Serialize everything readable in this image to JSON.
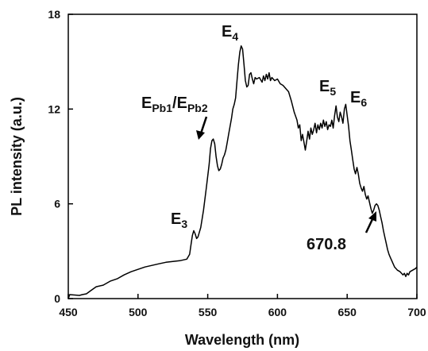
{
  "chart_data": {
    "type": "line",
    "title": "",
    "xlabel": "Wavelength (nm)",
    "ylabel": "PL intensity (a.u.)",
    "xlim": [
      450,
      700
    ],
    "ylim": [
      0,
      18
    ],
    "grid": false,
    "x_ticks": [
      450,
      500,
      550,
      600,
      650,
      700
    ],
    "y_ticks": [
      0,
      6,
      12,
      18
    ],
    "series": [
      {
        "color": "#000000",
        "points": [
          [
            450,
            0.0
          ],
          [
            451,
            0.25
          ],
          [
            458,
            0.2
          ],
          [
            460,
            0.25
          ],
          [
            463,
            0.3
          ],
          [
            466,
            0.5
          ],
          [
            470,
            0.75
          ],
          [
            475,
            0.85
          ],
          [
            480,
            1.1
          ],
          [
            485,
            1.25
          ],
          [
            490,
            1.5
          ],
          [
            495,
            1.7
          ],
          [
            500,
            1.85
          ],
          [
            505,
            2.0
          ],
          [
            510,
            2.1
          ],
          [
            515,
            2.2
          ],
          [
            520,
            2.3
          ],
          [
            525,
            2.35
          ],
          [
            530,
            2.4
          ],
          [
            535,
            2.5
          ],
          [
            537,
            2.8
          ],
          [
            538,
            3.4
          ],
          [
            539,
            4.0
          ],
          [
            540,
            4.3
          ],
          [
            541,
            4.1
          ],
          [
            542,
            3.8
          ],
          [
            543,
            3.9
          ],
          [
            545,
            4.5
          ],
          [
            547,
            5.6
          ],
          [
            549,
            7.0
          ],
          [
            551,
            8.5
          ],
          [
            552,
            9.5
          ],
          [
            553,
            10.0
          ],
          [
            554,
            10.1
          ],
          [
            555,
            9.8
          ],
          [
            556,
            9.0
          ],
          [
            557,
            8.4
          ],
          [
            558,
            8.1
          ],
          [
            559,
            8.2
          ],
          [
            560,
            8.5
          ],
          [
            561,
            8.9
          ],
          [
            562,
            9.1
          ],
          [
            563,
            9.4
          ],
          [
            564,
            9.9
          ],
          [
            565,
            10.4
          ],
          [
            566,
            10.9
          ],
          [
            567,
            11.4
          ],
          [
            568,
            12.0
          ],
          [
            569,
            12.3
          ],
          [
            570,
            12.7
          ],
          [
            571,
            13.8
          ],
          [
            572,
            14.8
          ],
          [
            573,
            15.6
          ],
          [
            574,
            16.0
          ],
          [
            575,
            15.8
          ],
          [
            576,
            14.8
          ],
          [
            577,
            13.8
          ],
          [
            578,
            13.4
          ],
          [
            579,
            13.5
          ],
          [
            580,
            14.2
          ],
          [
            581,
            14.3
          ],
          [
            582,
            13.9
          ],
          [
            583,
            13.6
          ],
          [
            584,
            14.0
          ],
          [
            585,
            13.9
          ],
          [
            587,
            14.0
          ],
          [
            589,
            13.7
          ],
          [
            590,
            14.1
          ],
          [
            591,
            13.8
          ],
          [
            592,
            14.2
          ],
          [
            593,
            13.9
          ],
          [
            594,
            14.3
          ],
          [
            595,
            13.8
          ],
          [
            596,
            14.0
          ],
          [
            598,
            13.8
          ],
          [
            600,
            13.9
          ],
          [
            602,
            13.6
          ],
          [
            604,
            13.5
          ],
          [
            606,
            13.3
          ],
          [
            608,
            13.1
          ],
          [
            610,
            12.5
          ],
          [
            612,
            11.8
          ],
          [
            614,
            11.3
          ],
          [
            615,
            10.8
          ],
          [
            616,
            11.0
          ],
          [
            617,
            10.0
          ],
          [
            618,
            10.4
          ],
          [
            619,
            9.9
          ],
          [
            620,
            9.4
          ],
          [
            621,
            10.0
          ],
          [
            622,
            10.6
          ],
          [
            623,
            10.1
          ],
          [
            624,
            10.8
          ],
          [
            625,
            10.4
          ],
          [
            626,
            10.7
          ],
          [
            627,
            11.1
          ],
          [
            628,
            10.5
          ],
          [
            629,
            11.0
          ],
          [
            630,
            10.7
          ],
          [
            631,
            11.1
          ],
          [
            632,
            10.8
          ],
          [
            633,
            11.3
          ],
          [
            634,
            10.9
          ],
          [
            635,
            11.2
          ],
          [
            636,
            10.7
          ],
          [
            637,
            11.0
          ],
          [
            638,
            10.9
          ],
          [
            639,
            11.3
          ],
          [
            640,
            10.8
          ],
          [
            641,
            11.6
          ],
          [
            642,
            12.2
          ],
          [
            643,
            11.5
          ],
          [
            644,
            11.2
          ],
          [
            645,
            11.8
          ],
          [
            646,
            11.5
          ],
          [
            647,
            11.1
          ],
          [
            648,
            12.0
          ],
          [
            649,
            12.3
          ],
          [
            650,
            11.6
          ],
          [
            651,
            10.9
          ],
          [
            652,
            10.0
          ],
          [
            653,
            9.4
          ],
          [
            654,
            8.8
          ],
          [
            655,
            8.2
          ],
          [
            656,
            7.9
          ],
          [
            657,
            8.3
          ],
          [
            658,
            7.9
          ],
          [
            659,
            7.3
          ],
          [
            660,
            7.0
          ],
          [
            661,
            6.8
          ],
          [
            662,
            7.1
          ],
          [
            663,
            6.6
          ],
          [
            664,
            6.3
          ],
          [
            665,
            6.5
          ],
          [
            666,
            6.1
          ],
          [
            667,
            5.7
          ],
          [
            668,
            5.4
          ],
          [
            669,
            5.6
          ],
          [
            670,
            5.9
          ],
          [
            671,
            6.0
          ],
          [
            672,
            5.9
          ],
          [
            673,
            5.6
          ],
          [
            674,
            5.2
          ],
          [
            675,
            4.8
          ],
          [
            676,
            4.3
          ],
          [
            677,
            3.9
          ],
          [
            678,
            3.5
          ],
          [
            679,
            3.1
          ],
          [
            680,
            2.8
          ],
          [
            681,
            2.6
          ],
          [
            682,
            2.4
          ],
          [
            683,
            2.2
          ],
          [
            684,
            2.0
          ],
          [
            685,
            1.9
          ],
          [
            686,
            1.8
          ],
          [
            687,
            1.75
          ],
          [
            688,
            1.7
          ],
          [
            689,
            1.6
          ],
          [
            690,
            1.5
          ],
          [
            691,
            1.6
          ],
          [
            692,
            1.4
          ],
          [
            693,
            1.6
          ],
          [
            694,
            1.5
          ],
          [
            695,
            1.7
          ],
          [
            697,
            1.8
          ],
          [
            699,
            1.9
          ],
          [
            700,
            2.0
          ]
        ]
      }
    ],
    "annotations": [
      {
        "label": "E",
        "sub": "4",
        "x": 575,
        "y": 16.0
      },
      {
        "label": "E",
        "sub": "Pb1",
        "label2": "/E",
        "sub2": "Pb2",
        "x": 554,
        "y": 10.1,
        "arrow": true
      },
      {
        "label": "E",
        "sub": "3",
        "x": 540,
        "y": 4.3
      },
      {
        "label": "E",
        "sub": "5",
        "x": 642,
        "y": 12.2
      },
      {
        "label": "E",
        "sub": "6",
        "x": 649,
        "y": 12.3
      },
      {
        "label": "670.8",
        "x": 670.8,
        "y": 5.9,
        "arrow": true
      }
    ]
  }
}
